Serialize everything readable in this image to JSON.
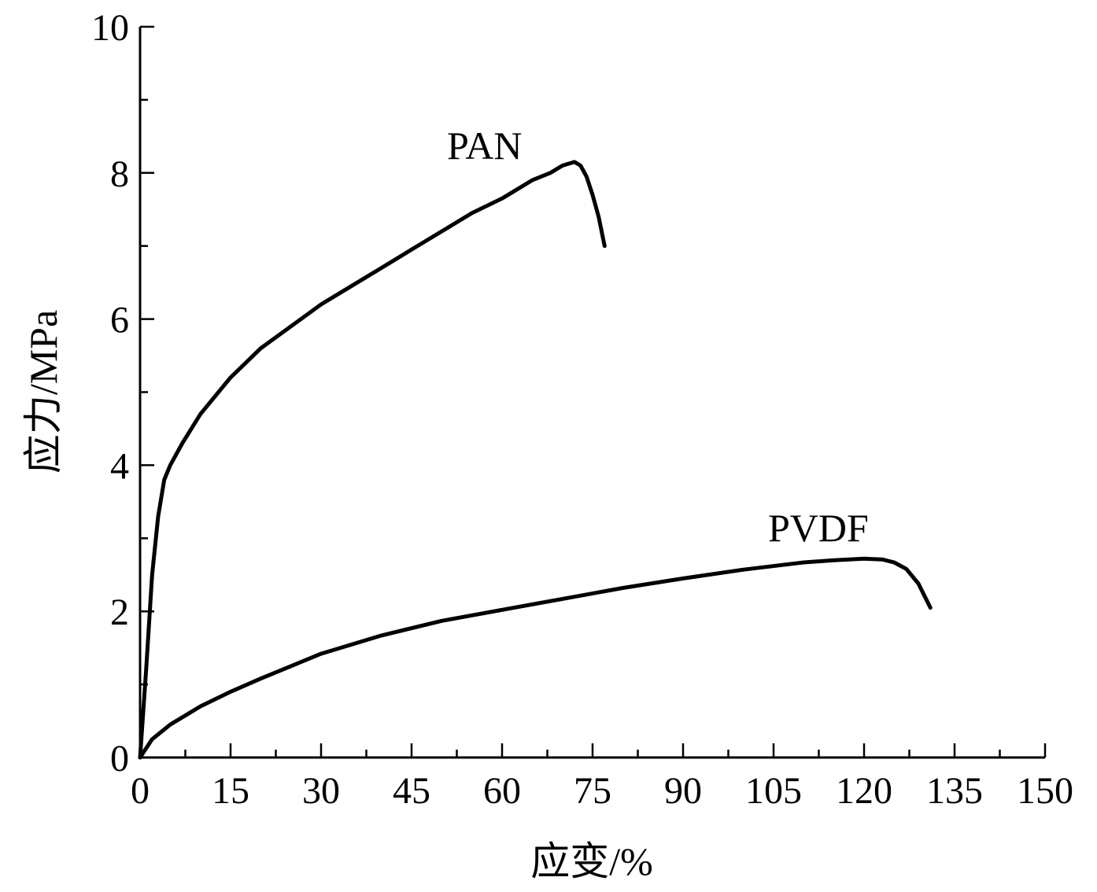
{
  "chart_data": {
    "type": "line",
    "title": "",
    "xlabel": "应变/%",
    "ylabel": "应力/MPa",
    "xlim": [
      0,
      150
    ],
    "ylim": [
      0,
      10
    ],
    "x_ticks": [
      0,
      15,
      30,
      45,
      60,
      75,
      90,
      105,
      120,
      135,
      150
    ],
    "y_ticks": [
      0,
      2,
      4,
      6,
      8,
      10
    ],
    "x_tick_labels": [
      "0",
      "15",
      "30",
      "45",
      "60",
      "75",
      "90",
      "105",
      "120",
      "135",
      "150"
    ],
    "y_tick_labels": [
      "0",
      "2",
      "4",
      "6",
      "8",
      "10"
    ],
    "grid": false,
    "line_color": "#000000",
    "series": [
      {
        "name": "PAN",
        "x": [
          0,
          1,
          2,
          3,
          4,
          5,
          7,
          10,
          15,
          20,
          25,
          30,
          35,
          40,
          45,
          50,
          55,
          60,
          65,
          68,
          70,
          72,
          73,
          74,
          75,
          76,
          77
        ],
        "y": [
          0,
          1.2,
          2.5,
          3.3,
          3.8,
          4.0,
          4.3,
          4.7,
          5.2,
          5.6,
          5.9,
          6.2,
          6.45,
          6.7,
          6.95,
          7.2,
          7.45,
          7.65,
          7.9,
          8.0,
          8.1,
          8.15,
          8.1,
          7.95,
          7.7,
          7.4,
          7.0
        ]
      },
      {
        "name": "PVDF",
        "x": [
          0,
          2,
          5,
          10,
          15,
          20,
          30,
          40,
          50,
          60,
          70,
          80,
          90,
          100,
          110,
          115,
          120,
          123,
          125,
          127,
          129,
          131
        ],
        "y": [
          0,
          0.25,
          0.45,
          0.7,
          0.9,
          1.08,
          1.42,
          1.67,
          1.87,
          2.02,
          2.17,
          2.32,
          2.45,
          2.57,
          2.67,
          2.7,
          2.72,
          2.71,
          2.67,
          2.58,
          2.38,
          2.05
        ]
      }
    ]
  }
}
